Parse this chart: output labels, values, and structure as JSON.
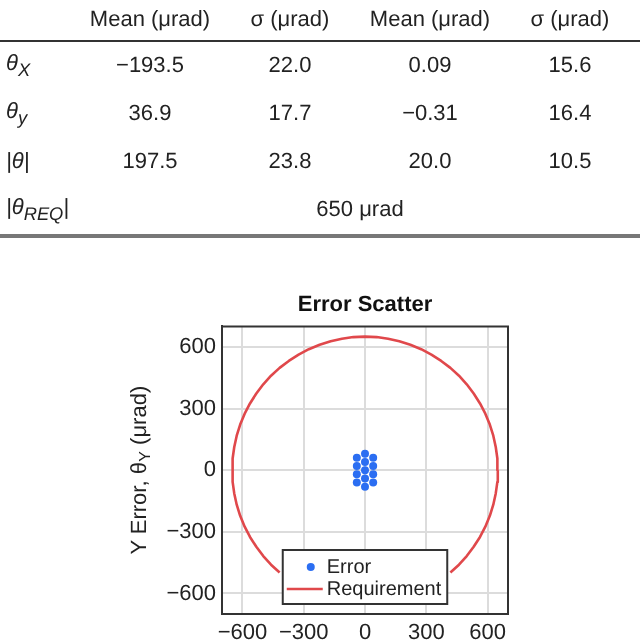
{
  "chart_data": [
    {
      "type": "other",
      "categories": [
        "Mean (μrad)",
        "σ (μrad)",
        "Mean (μrad)",
        "σ (μrad)"
      ],
      "y_categories": [
        "θ$_{X}$",
        "θ$_{y}$",
        "|θ|",
        "|θ$_{REQ}$|"
      ],
      "cell_labels": [
        [
          "−193.5",
          "22.0",
          "0.09",
          "15.6"
        ],
        [
          "36.9",
          "17.7",
          "−0.31",
          "16.4"
        ],
        [
          "197.5",
          "23.8",
          "20.0",
          "10.5"
        ],
        [
          "650 μrad",
          null,
          null,
          null
        ]
      ]
    },
    {
      "type": "scatter",
      "title": "Error Scatter",
      "ylabel": "Y Error, θ$_{Y}$ (μrad)",
      "xlim": [
        -700,
        700
      ],
      "ylim": [
        -700,
        700
      ],
      "xticks": [
        {
          "value": -600,
          "label": "−600"
        },
        {
          "value": -300,
          "label": "−300"
        },
        0,
        300,
        600
      ],
      "yticks": [
        {
          "value": -600,
          "label": "−600"
        },
        {
          "value": -300,
          "label": "−300"
        },
        0,
        300,
        600
      ],
      "grid": true,
      "legend": "bottom",
      "series": [
        {
          "name": "Error",
          "type": "scatter",
          "color": "#2b6ef2",
          "marker": "circle",
          "x": [
            0,
            0,
            0,
            0,
            0,
            -40,
            -40,
            -40,
            -40,
            40,
            40,
            40,
            40
          ],
          "values": [
            -80,
            -40,
            0,
            40,
            80,
            -60,
            -20,
            20,
            60,
            -60,
            -20,
            20,
            60
          ]
        },
        {
          "name": "Requirement",
          "type": "line",
          "color": "#e0484b",
          "marker": "none",
          "x": [
            650,
            648,
            640,
            628,
            611,
            589,
            563,
            532,
            498,
            460,
            418,
            373,
            325,
            275,
            222,
            168,
            113,
            57,
            0,
            -57,
            -113,
            -168,
            -222,
            -275,
            -325,
            -373,
            -418,
            -460,
            -498,
            -532,
            -563,
            -589,
            -611,
            -628,
            -640,
            -648,
            -648,
            -640,
            -628,
            -611,
            -589,
            -563,
            -532,
            -498,
            -460,
            -418,
            -373,
            -325,
            -275,
            -222,
            -168,
            -113,
            -57,
            0,
            57,
            113,
            168,
            222,
            275,
            325,
            373,
            418,
            460,
            498,
            532,
            563,
            589,
            611,
            628,
            640,
            648,
            650
          ],
          "values": [
            0,
            57,
            113,
            168,
            222,
            275,
            325,
            373,
            418,
            460,
            498,
            532,
            563,
            589,
            611,
            628,
            640,
            648,
            650,
            648,
            640,
            628,
            611,
            589,
            563,
            532,
            498,
            460,
            418,
            373,
            325,
            275,
            222,
            168,
            113,
            57,
            -57,
            -113,
            -168,
            -222,
            -275,
            -325,
            -373,
            -418,
            -460,
            -498,
            null,
            null,
            null,
            null,
            null,
            null,
            null,
            null,
            null,
            null,
            null,
            null,
            null,
            null,
            null,
            -498,
            -460,
            -418,
            -373,
            -325,
            -275,
            -222,
            -168,
            -113,
            -57,
            0
          ]
        }
      ]
    }
  ]
}
